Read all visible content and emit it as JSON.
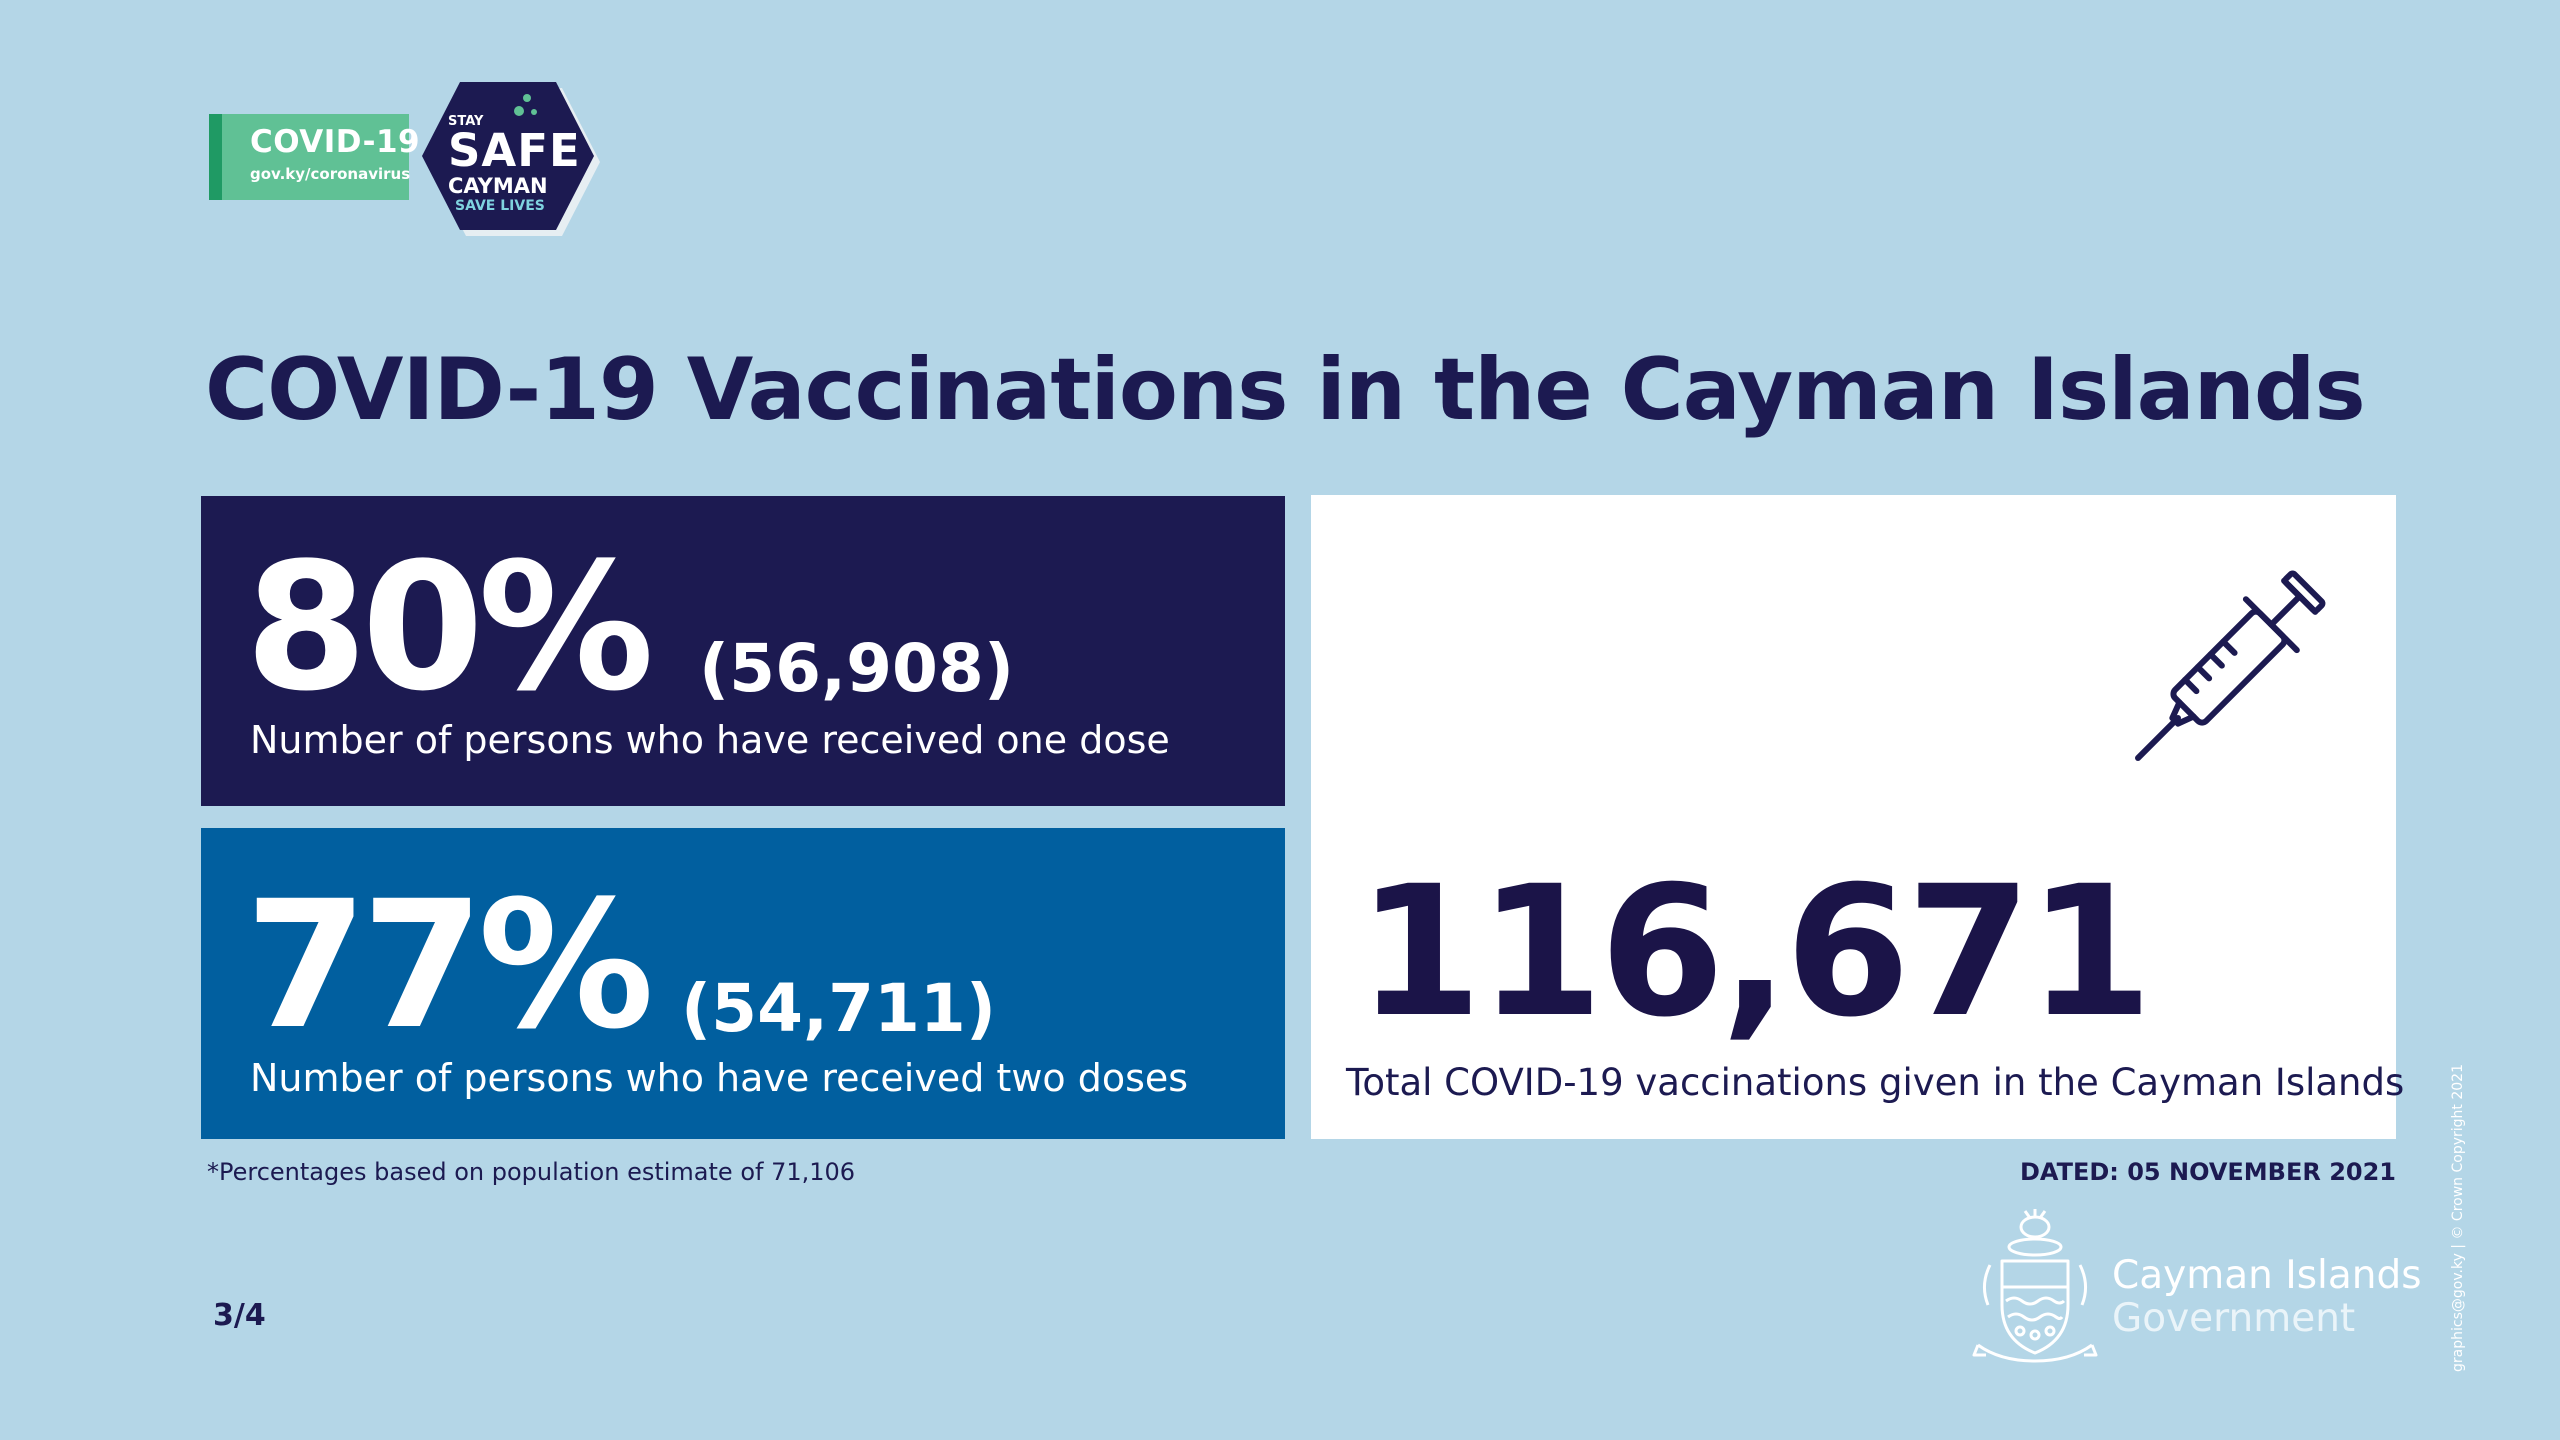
{
  "header": {
    "covid_label": "COVID-19",
    "covid_url": "gov.ky/coronavirus",
    "stay": "STAY",
    "safe": "SAFE",
    "cayman": "CAYMAN",
    "save_lives": "SAVE LIVES"
  },
  "title": "COVID-19 Vaccinations in the Cayman Islands",
  "stats": {
    "one_dose": {
      "percent": "80%",
      "count": "(56,908)",
      "label": "Number of persons who have received one dose"
    },
    "two_doses": {
      "percent": "77%",
      "count": "(54,711)",
      "label": "Number of persons who have received two doses"
    },
    "total": {
      "value": "116,671",
      "label": "Total COVID-19 vaccinations given in the Cayman Islands"
    }
  },
  "footnote": "*Percentages based on population estimate of 71,106",
  "dated": "DATED: 05 NOVEMBER 2021",
  "page_number": "3/4",
  "government": {
    "line1": "Cayman Islands",
    "line2": "Government"
  },
  "credit": "graphics@gov.ky | © Crown Copyright 2021",
  "colors": {
    "background": "#b4d6e7",
    "navy": "#1c1a51",
    "blue": "#015f9f",
    "green": "#60c195",
    "white": "#ffffff"
  },
  "icons": [
    "syringe-icon",
    "coat-of-arms-icon",
    "stay-safe-hexagon"
  ]
}
